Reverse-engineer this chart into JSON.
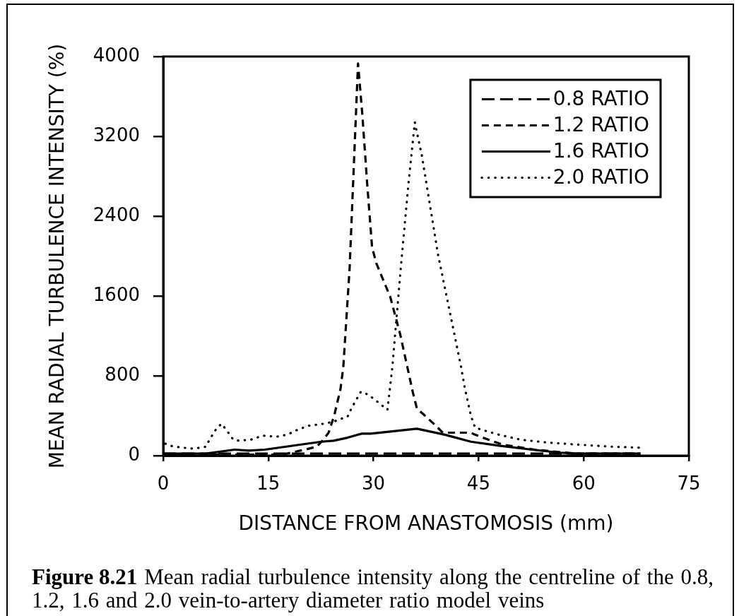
{
  "chart_data": {
    "type": "line",
    "xlabel": "DISTANCE FROM ANASTOMOSIS (mm)",
    "ylabel": "MEAN RADIAL TURBULENCE INTENSITY (%)",
    "xlim": [
      0,
      75
    ],
    "xticks": [
      0,
      15,
      30,
      45,
      60,
      75
    ],
    "ylim": [
      0,
      4000
    ],
    "yticks": [
      0,
      800,
      1600,
      2400,
      3200,
      4000
    ],
    "legend": "top right",
    "annotations": [
      "Figure 8.21",
      "Mean radial turbulence intensity along the centreline of the 0.8,",
      "1.2, 1.6 and 2.0 vein-to-artery diameter ratio model veins"
    ],
    "series": [
      {
        "name": "0.8 RATIO",
        "color": "#000000",
        "line_style": "dashed",
        "x": [
          0,
          15,
          30,
          45,
          60,
          68.1
        ],
        "values": [
          20,
          20,
          20,
          20,
          20,
          20
        ]
      },
      {
        "name": "1.2 RATIO",
        "color": "#000000",
        "line_style": "dashed",
        "x": [
          0,
          17,
          18.2,
          20.2,
          21.9,
          22.6,
          23.6,
          24.4,
          25.3,
          25.7,
          26.6,
          27.8,
          28.4,
          29.1,
          29.8,
          30.4,
          32.4,
          33.8,
          34.8,
          35.6,
          36.2,
          37.2,
          38.9,
          39.9,
          41.2,
          43.9,
          44.5,
          47.2,
          48.5,
          53,
          59,
          68.1
        ],
        "values": [
          10,
          10,
          30,
          60,
          90,
          140,
          230,
          400,
          670,
          890,
          1880,
          3930,
          3430,
          2730,
          2090,
          1930,
          1590,
          1220,
          900,
          640,
          470,
          410,
          300,
          230,
          230,
          230,
          210,
          140,
          110,
          60,
          20,
          20
        ]
      },
      {
        "name": "1.6 RATIO",
        "color": "#000000",
        "line_style": "solid",
        "x": [
          0,
          6.1,
          10.2,
          12.2,
          14.5,
          19.5,
          22.6,
          24.3,
          26.3,
          28.3,
          29.6,
          36.2,
          40.2,
          43.9,
          47.9,
          52.6,
          56.6,
          59,
          68.1
        ],
        "values": [
          20,
          20,
          60,
          50,
          60,
          110,
          140,
          150,
          180,
          220,
          220,
          270,
          210,
          140,
          100,
          60,
          30,
          20,
          20
        ]
      },
      {
        "name": "2.0 RATIO",
        "color": "#000000",
        "line_style": "dotted",
        "x": [
          0.3,
          0.9,
          2.7,
          4.4,
          6.1,
          6.6,
          7.5,
          8.3,
          9.0,
          10.0,
          10.8,
          12.5,
          14.2,
          16.2,
          17.7,
          19.2,
          20.8,
          22.9,
          24.3,
          25.4,
          26.3,
          26.9,
          28.2,
          29.3,
          31.1,
          32.0,
          32.7,
          33.9,
          35.0,
          35.9,
          36.9,
          39.2,
          42.5,
          43.0,
          43.9,
          44.5,
          45.9,
          47.9,
          51.0,
          55.0,
          59.3,
          64.0,
          68.1
        ],
        "values": [
          120,
          100,
          80,
          70,
          90,
          160,
          260,
          320,
          260,
          160,
          150,
          160,
          200,
          190,
          210,
          260,
          300,
          320,
          340,
          370,
          390,
          480,
          640,
          610,
          510,
          460,
          890,
          1880,
          2730,
          3340,
          3010,
          2020,
          890,
          690,
          400,
          280,
          250,
          210,
          160,
          130,
          110,
          90,
          80
        ]
      }
    ]
  }
}
